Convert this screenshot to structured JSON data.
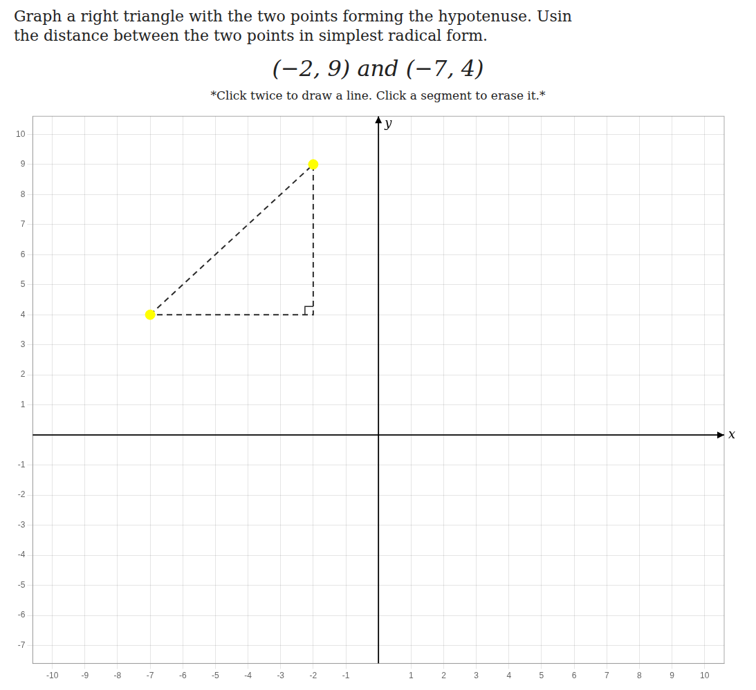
{
  "chart_data": {
    "type": "scatter",
    "title": [
      "Graph a right triangle with the two points forming the hypotenuse. Usin",
      "the distance between the two points in simplest radical form."
    ],
    "subtitle": "(−2, 9) and (−7, 4)",
    "annotations": [
      "*Click twice to draw a line. Click a segment to erase it.*"
    ],
    "x_label": "x",
    "y_label": "y",
    "xlim": [
      -10.6,
      10.6
    ],
    "ylim": [
      -7.6,
      10.6
    ],
    "xticks": [
      -10,
      -9,
      -8,
      -7,
      -6,
      -5,
      -4,
      -3,
      -2,
      -1,
      1,
      2,
      3,
      4,
      5,
      6,
      7,
      8,
      9,
      10
    ],
    "yticks": [
      -7,
      -6,
      -5,
      -4,
      -3,
      -2,
      -1,
      1,
      2,
      3,
      4,
      5,
      6,
      7,
      8,
      9,
      10
    ],
    "grid": true,
    "series": [
      {
        "type": "line",
        "x": [
          -7,
          -2,
          -2,
          -7
        ],
        "values": [
          4,
          9,
          4,
          4
        ],
        "color": "#2a2a2a",
        "line_style": "dashed"
      },
      {
        "type": "scatter",
        "x": [
          -2,
          -7
        ],
        "values": [
          9,
          4
        ],
        "color": "#ffff00",
        "marker": "circle"
      }
    ]
  }
}
